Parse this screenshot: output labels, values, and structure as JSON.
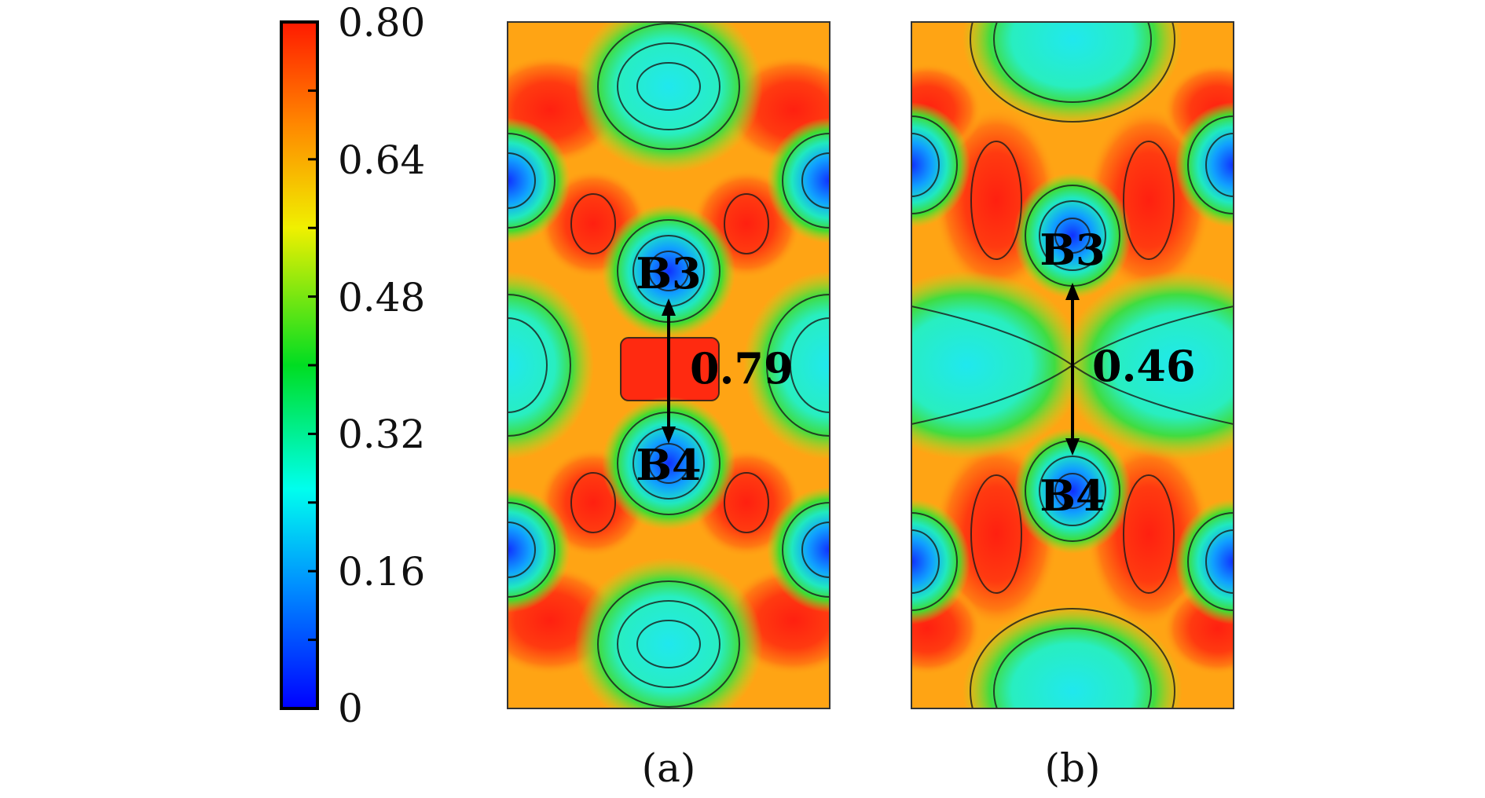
{
  "colorbar": {
    "tick_labels": [
      "0.80",
      "0.64",
      "0.48",
      "0.32",
      "0.16",
      "0"
    ],
    "min": 0,
    "max": 0.8,
    "colormap": [
      "#0000ff",
      "#00aaff",
      "#00ffee",
      "#00dd22",
      "#ffee00",
      "#ff8800",
      "#ff2200"
    ]
  },
  "panels": [
    {
      "label": "(a)",
      "atom_top": "B3",
      "atom_bottom": "B4",
      "distance": "0.79",
      "field_colors": {
        "low": "#1a55ff",
        "cyan": "#2af0d8",
        "green": "#48e040",
        "yellow": "#d8ec20",
        "orange": "#ff9a10",
        "red": "#ff2a10"
      }
    },
    {
      "label": "(b)",
      "atom_top": "B3",
      "atom_bottom": "B4",
      "distance": "0.46",
      "field_colors": {
        "low": "#1a55ff",
        "cyan": "#2af0d8",
        "green": "#48e040",
        "yellow": "#d8ec20",
        "orange": "#ff9a10",
        "red": "#ff2a10"
      }
    }
  ]
}
